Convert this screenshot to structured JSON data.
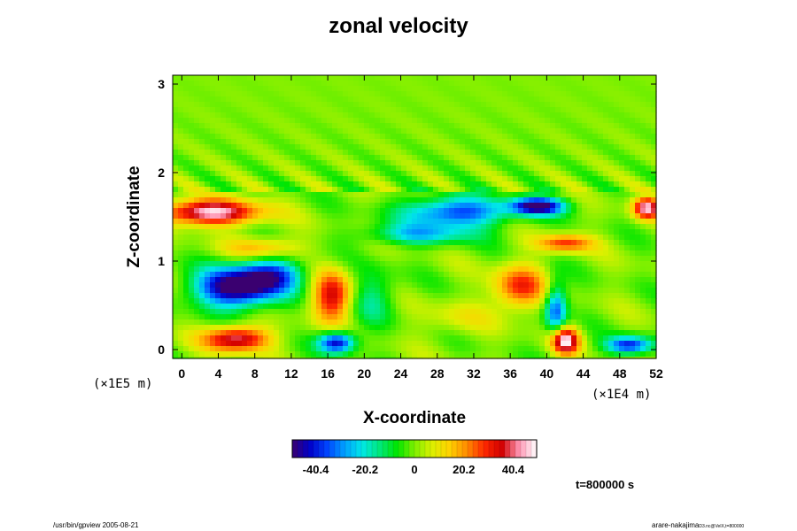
{
  "chart_data": {
    "type": "heatmap",
    "title": "zonal velocity",
    "xlabel": "X-coordinate",
    "ylabel": "Z-coordinate",
    "x_scale_note": "(×1E4 m)",
    "y_scale_note": "(×1E5 m)",
    "xlim": [
      -1,
      52
    ],
    "ylim": [
      -0.1,
      3.1
    ],
    "x_ticks": [
      "0",
      "4",
      "8",
      "12",
      "16",
      "20",
      "24",
      "28",
      "32",
      "36",
      "40",
      "44",
      "48",
      "52"
    ],
    "y_ticks": [
      "0",
      "1",
      "2",
      "3"
    ],
    "colorbar": {
      "ticks": [
        "-40.4",
        "-20.2",
        "0",
        "20.2",
        "40.4"
      ],
      "tick_values": [
        -40.4,
        -20.2,
        0,
        20.2,
        40.4
      ],
      "range": [
        -50,
        50
      ],
      "colors": [
        "#3a0070",
        "#0000c8",
        "#0044ff",
        "#00a0ff",
        "#00e8e8",
        "#00e87c",
        "#00e600",
        "#7ef000",
        "#dcf000",
        "#ffd200",
        "#ff8c00",
        "#ff2800",
        "#d20000",
        "#ff96b4",
        "#ffffff"
      ]
    },
    "field_features": [
      {
        "x": 6,
        "z": 0.7,
        "value": -55,
        "rx": 4.5,
        "rz": 0.22
      },
      {
        "x": 10,
        "z": 0.85,
        "value": -30,
        "rx": 3.5,
        "rz": 0.18
      },
      {
        "x": 30,
        "z": 1.55,
        "value": -38,
        "rx": 5.5,
        "rz": 0.17
      },
      {
        "x": 39,
        "z": 1.62,
        "value": -50,
        "rx": 3.0,
        "rz": 0.1
      },
      {
        "x": 3,
        "z": 1.55,
        "value": 48,
        "rx": 5.5,
        "rz": 0.14
      },
      {
        "x": 51,
        "z": 1.6,
        "value": 45,
        "rx": 1.5,
        "rz": 0.12
      },
      {
        "x": 16.5,
        "z": 0.6,
        "value": 35,
        "rx": 2.2,
        "rz": 0.28
      },
      {
        "x": 37,
        "z": 0.7,
        "value": 30,
        "rx": 2.8,
        "rz": 0.25
      },
      {
        "x": 42,
        "z": 0.1,
        "value": 50,
        "rx": 1.5,
        "rz": 0.15
      },
      {
        "x": 6,
        "z": 0.12,
        "value": 42,
        "rx": 3.5,
        "rz": 0.14
      },
      {
        "x": 17,
        "z": 0.08,
        "value": -45,
        "rx": 2.0,
        "rz": 0.12
      },
      {
        "x": 49,
        "z": 0.05,
        "value": -40,
        "rx": 2.5,
        "rz": 0.1
      },
      {
        "x": 41,
        "z": 0.45,
        "value": -35,
        "rx": 1.2,
        "rz": 0.3
      },
      {
        "x": 26,
        "z": 1.3,
        "value": -22,
        "rx": 6.0,
        "rz": 0.12
      },
      {
        "x": 42,
        "z": 1.2,
        "value": 28,
        "rx": 3.0,
        "rz": 0.1
      },
      {
        "x": 9,
        "z": 1.15,
        "value": 18,
        "rx": 4.0,
        "rz": 0.12
      },
      {
        "x": 21,
        "z": 0.6,
        "value": -15,
        "rx": 2.5,
        "rz": 0.3
      },
      {
        "x": 30,
        "z": 0.35,
        "value": 8,
        "rx": 4.0,
        "rz": 0.2
      }
    ],
    "annotation": "t=800000 s"
  },
  "footer": {
    "left": "/usr/bin/gpview 2005-08-21",
    "right_main": "arare-nakajima",
    "right_sub": "D3.nc@VelX,t=800000"
  }
}
